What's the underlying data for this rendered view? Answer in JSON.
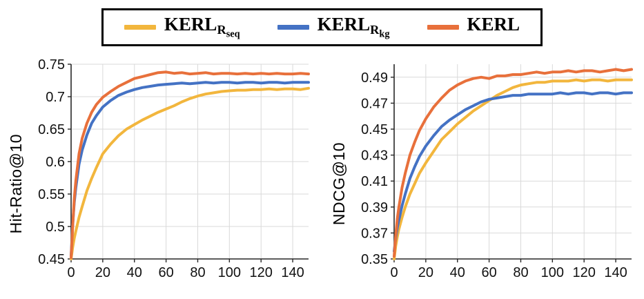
{
  "legend": {
    "items": [
      {
        "main": "KERL",
        "sub": "R",
        "subsub": "seq",
        "color": "#F2B63D"
      },
      {
        "main": "KERL",
        "sub": "R",
        "subsub": "kg",
        "color": "#4472C4"
      },
      {
        "main": "KERL",
        "sub": "",
        "subsub": "",
        "color": "#E8703B"
      }
    ]
  },
  "chart_data": [
    {
      "type": "line",
      "title": "",
      "xlabel": "",
      "ylabel": "Hit-Ratio@10",
      "xlim": [
        0,
        150
      ],
      "ylim": [
        0.45,
        0.75
      ],
      "grid": true,
      "legend_position": "top",
      "xticks": [
        0,
        20,
        40,
        60,
        80,
        100,
        120,
        140
      ],
      "xtick_labels": [
        "0",
        "20",
        "40",
        "60",
        "80",
        "100",
        "120",
        "140"
      ],
      "yticks": [
        0.45,
        0.5,
        0.55,
        0.6,
        0.65,
        0.7,
        0.75
      ],
      "ytick_labels": [
        "0.45",
        "0.5",
        "0.55",
        "0.6",
        "0.65",
        "0.7",
        "0.75"
      ],
      "x": [
        0,
        1,
        2,
        3,
        5,
        7,
        10,
        13,
        16,
        20,
        25,
        30,
        35,
        40,
        45,
        50,
        55,
        60,
        65,
        70,
        75,
        80,
        85,
        90,
        95,
        100,
        105,
        110,
        115,
        120,
        125,
        130,
        135,
        140,
        145,
        150
      ],
      "series": [
        {
          "name": "KERL_Rseq",
          "color": "#F2B63D",
          "values": [
            0.45,
            0.468,
            0.482,
            0.493,
            0.514,
            0.531,
            0.555,
            0.574,
            0.591,
            0.612,
            0.627,
            0.64,
            0.65,
            0.657,
            0.664,
            0.67,
            0.676,
            0.681,
            0.686,
            0.692,
            0.697,
            0.701,
            0.704,
            0.706,
            0.708,
            0.709,
            0.71,
            0.71,
            0.711,
            0.711,
            0.712,
            0.711,
            0.712,
            0.712,
            0.711,
            0.713
          ]
        },
        {
          "name": "KERL_Rkg",
          "color": "#4472C4",
          "values": [
            0.455,
            0.503,
            0.537,
            0.56,
            0.596,
            0.618,
            0.641,
            0.659,
            0.671,
            0.684,
            0.694,
            0.702,
            0.707,
            0.711,
            0.714,
            0.716,
            0.718,
            0.719,
            0.72,
            0.721,
            0.72,
            0.721,
            0.722,
            0.721,
            0.722,
            0.722,
            0.721,
            0.722,
            0.722,
            0.721,
            0.722,
            0.722,
            0.721,
            0.722,
            0.722,
            0.722
          ]
        },
        {
          "name": "KERL",
          "color": "#E8703B",
          "values": [
            0.452,
            0.5,
            0.543,
            0.571,
            0.612,
            0.636,
            0.659,
            0.676,
            0.688,
            0.699,
            0.708,
            0.716,
            0.722,
            0.728,
            0.731,
            0.734,
            0.737,
            0.738,
            0.736,
            0.737,
            0.735,
            0.736,
            0.737,
            0.735,
            0.736,
            0.736,
            0.735,
            0.736,
            0.735,
            0.736,
            0.735,
            0.736,
            0.735,
            0.735,
            0.736,
            0.735
          ]
        }
      ]
    },
    {
      "type": "line",
      "title": "",
      "xlabel": "",
      "ylabel": "NDCG@10",
      "xlim": [
        0,
        150
      ],
      "ylim": [
        0.35,
        0.5
      ],
      "grid": true,
      "legend_position": "top",
      "xticks": [
        0,
        20,
        40,
        60,
        80,
        100,
        120,
        140
      ],
      "xtick_labels": [
        "0",
        "20",
        "40",
        "60",
        "80",
        "100",
        "120",
        "140"
      ],
      "yticks": [
        0.35,
        0.37,
        0.39,
        0.41,
        0.43,
        0.45,
        0.47,
        0.49
      ],
      "ytick_labels": [
        "0.35",
        "0.37",
        "0.39",
        "0.41",
        "0.43",
        "0.45",
        "0.47",
        "0.49"
      ],
      "x": [
        0,
        1,
        2,
        3,
        5,
        7,
        10,
        13,
        16,
        20,
        25,
        30,
        35,
        40,
        45,
        50,
        55,
        60,
        65,
        70,
        75,
        80,
        85,
        90,
        95,
        100,
        105,
        110,
        115,
        120,
        125,
        130,
        135,
        140,
        145,
        150
      ],
      "series": [
        {
          "name": "KERL_Rseq",
          "color": "#F2B63D",
          "values": [
            0.35,
            0.36,
            0.367,
            0.373,
            0.382,
            0.39,
            0.4,
            0.408,
            0.416,
            0.424,
            0.433,
            0.442,
            0.448,
            0.454,
            0.459,
            0.464,
            0.468,
            0.472,
            0.476,
            0.479,
            0.482,
            0.484,
            0.485,
            0.486,
            0.486,
            0.487,
            0.487,
            0.487,
            0.488,
            0.487,
            0.488,
            0.488,
            0.487,
            0.488,
            0.488,
            0.488
          ]
        },
        {
          "name": "KERL_Rkg",
          "color": "#4472C4",
          "values": [
            0.356,
            0.366,
            0.374,
            0.38,
            0.391,
            0.4,
            0.412,
            0.421,
            0.429,
            0.437,
            0.445,
            0.452,
            0.457,
            0.461,
            0.465,
            0.468,
            0.471,
            0.473,
            0.474,
            0.475,
            0.476,
            0.476,
            0.477,
            0.477,
            0.477,
            0.477,
            0.478,
            0.477,
            0.478,
            0.478,
            0.477,
            0.478,
            0.478,
            0.477,
            0.478,
            0.478
          ]
        },
        {
          "name": "KERL",
          "color": "#E8703B",
          "values": [
            0.352,
            0.368,
            0.381,
            0.39,
            0.405,
            0.416,
            0.43,
            0.44,
            0.449,
            0.458,
            0.467,
            0.474,
            0.48,
            0.484,
            0.487,
            0.489,
            0.49,
            0.489,
            0.491,
            0.491,
            0.492,
            0.492,
            0.493,
            0.494,
            0.493,
            0.494,
            0.494,
            0.495,
            0.494,
            0.495,
            0.495,
            0.494,
            0.495,
            0.496,
            0.495,
            0.496
          ]
        }
      ]
    }
  ]
}
